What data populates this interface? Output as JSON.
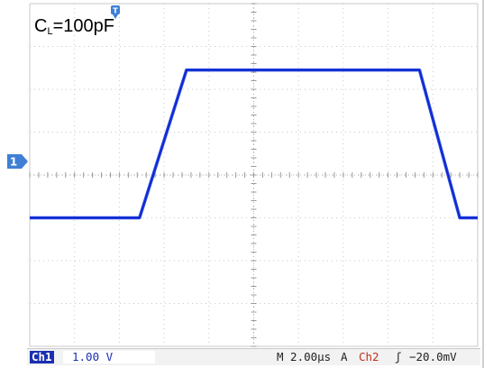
{
  "annotation": {
    "main": "C",
    "sub": "L",
    "rest": "=100pF"
  },
  "channel_marker": "1",
  "status": {
    "channel": "Ch1",
    "scale": "1.00 V",
    "timebase": "M 2.00µs",
    "acq_mode": "A",
    "trigger_channel": "Ch2",
    "trigger_slope": "ʃ",
    "trigger_level": "−20.0mV"
  },
  "colors": {
    "trace": "#1a3be0",
    "grid": "#c8c8c8",
    "ch1": "#1a2fb0",
    "trigger": "#c0301c"
  },
  "chart_data": {
    "type": "line",
    "title": "",
    "xlabel": "",
    "ylabel": "",
    "grid": true,
    "x_unit": "µs",
    "y_unit": "V",
    "xlim": [
      0,
      20
    ],
    "ylim": [
      -4,
      4
    ],
    "series": [
      {
        "values": [
          {
            "x": 0.0,
            "y": -1.0
          },
          {
            "x": 4.9,
            "y": -1.0
          },
          {
            "x": 7.0,
            "y": 2.45
          },
          {
            "x": 17.4,
            "y": 2.45
          },
          {
            "x": 19.2,
            "y": -1.0
          },
          {
            "x": 25.0,
            "y": -1.0
          }
        ]
      }
    ]
  }
}
